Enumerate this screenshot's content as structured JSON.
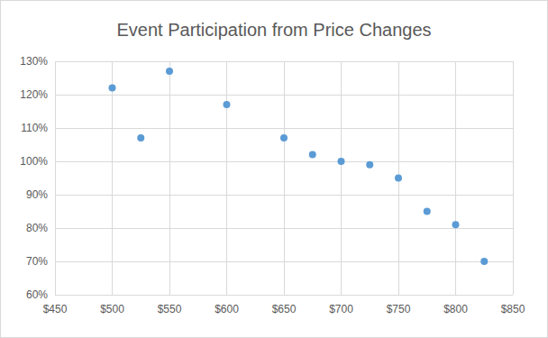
{
  "chart_data": {
    "type": "scatter",
    "title": "Event Participation from Price Changes",
    "x": [
      500,
      525,
      550,
      600,
      650,
      675,
      700,
      725,
      750,
      775,
      800,
      825
    ],
    "values": [
      122,
      107,
      127,
      117,
      107,
      102,
      100,
      99,
      95,
      85,
      81,
      70
    ],
    "color": "#5b9bd5",
    "marker": "circle",
    "xlim": [
      450,
      850
    ],
    "xticks": [
      {
        "value": 450,
        "label": "$450"
      },
      {
        "value": 500,
        "label": "$500"
      },
      {
        "value": 550,
        "label": "$550"
      },
      {
        "value": 600,
        "label": "$600"
      },
      {
        "value": 650,
        "label": "$650"
      },
      {
        "value": 700,
        "label": "$700"
      },
      {
        "value": 750,
        "label": "$750"
      },
      {
        "value": 800,
        "label": "$800"
      },
      {
        "value": 850,
        "label": "$850"
      }
    ],
    "ylim": [
      60,
      130
    ],
    "yticks": [
      {
        "value": 60,
        "label": "60%"
      },
      {
        "value": 70,
        "label": "70%"
      },
      {
        "value": 80,
        "label": "80%"
      },
      {
        "value": 90,
        "label": "90%"
      },
      {
        "value": 100,
        "label": "100%"
      },
      {
        "value": 110,
        "label": "110%"
      },
      {
        "value": 120,
        "label": "120%"
      },
      {
        "value": 130,
        "label": "130%"
      }
    ],
    "grid": true
  }
}
